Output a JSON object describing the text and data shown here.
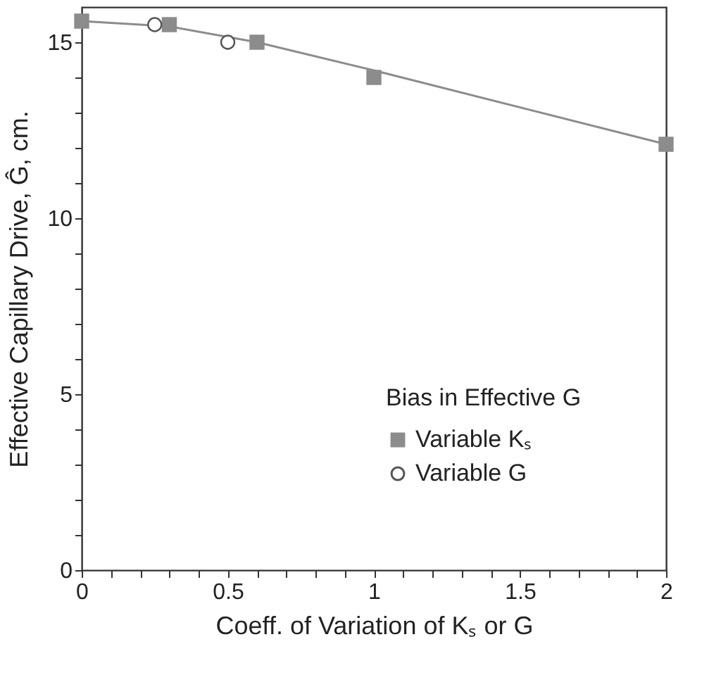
{
  "chart_data": {
    "type": "scatter",
    "xlabel": "Coeff. of Variation of Kₛ or G",
    "ylabel": "Effective Capillary Drive, Ĝ, cm.",
    "legend_title": "Bias in Effective G",
    "series": [
      {
        "type": "line",
        "color": "#8c8c8c",
        "x": [
          0,
          0.3,
          0.6,
          1.0,
          2.0
        ],
        "values": [
          15.6,
          15.45,
          15.0,
          14.2,
          12.1
        ]
      },
      {
        "name": "Variable Kₛ",
        "color": "#8c8c8c",
        "x": [
          0,
          0.3,
          0.6,
          1.0,
          2.0
        ],
        "values": [
          15.6,
          15.5,
          15.0,
          14.0,
          12.1
        ],
        "marker": "square"
      },
      {
        "name": "Variable G",
        "color": "#555555",
        "x": [
          0.25,
          0.5
        ],
        "values": [
          15.5,
          15.0
        ],
        "marker": "circle"
      }
    ],
    "xlim": [
      0,
      2
    ],
    "ylim": [
      0,
      16
    ],
    "xticks": [
      0,
      {
        "value": 0.1,
        "label": null
      },
      {
        "value": 0.2,
        "label": null
      },
      {
        "value": 0.3,
        "label": null
      },
      {
        "value": 0.4,
        "label": null
      },
      0.5,
      {
        "value": 0.6,
        "label": null
      },
      {
        "value": 0.7,
        "label": null
      },
      {
        "value": 0.8,
        "label": null
      },
      {
        "value": 0.9,
        "label": null
      },
      1,
      {
        "value": 1.1,
        "label": null
      },
      {
        "value": 1.2,
        "label": null
      },
      {
        "value": 1.3,
        "label": null
      },
      {
        "value": 1.4,
        "label": null
      },
      1.5,
      {
        "value": 1.6,
        "label": null
      },
      {
        "value": 1.7,
        "label": null
      },
      {
        "value": 1.8,
        "label": null
      },
      {
        "value": 1.9,
        "label": null
      },
      2
    ],
    "yticks": [
      0,
      {
        "value": 1,
        "label": null
      },
      {
        "value": 2,
        "label": null
      },
      {
        "value": 3,
        "label": null
      },
      {
        "value": 4,
        "label": null
      },
      5,
      {
        "value": 6,
        "label": null
      },
      {
        "value": 7,
        "label": null
      },
      {
        "value": 8,
        "label": null
      },
      {
        "value": 9,
        "label": null
      },
      10,
      {
        "value": 11,
        "label": null
      },
      {
        "value": 12,
        "label": null
      },
      {
        "value": 13,
        "label": null
      },
      {
        "value": 14,
        "label": null
      },
      15
    ],
    "grid": false,
    "legend": "bottom right"
  }
}
